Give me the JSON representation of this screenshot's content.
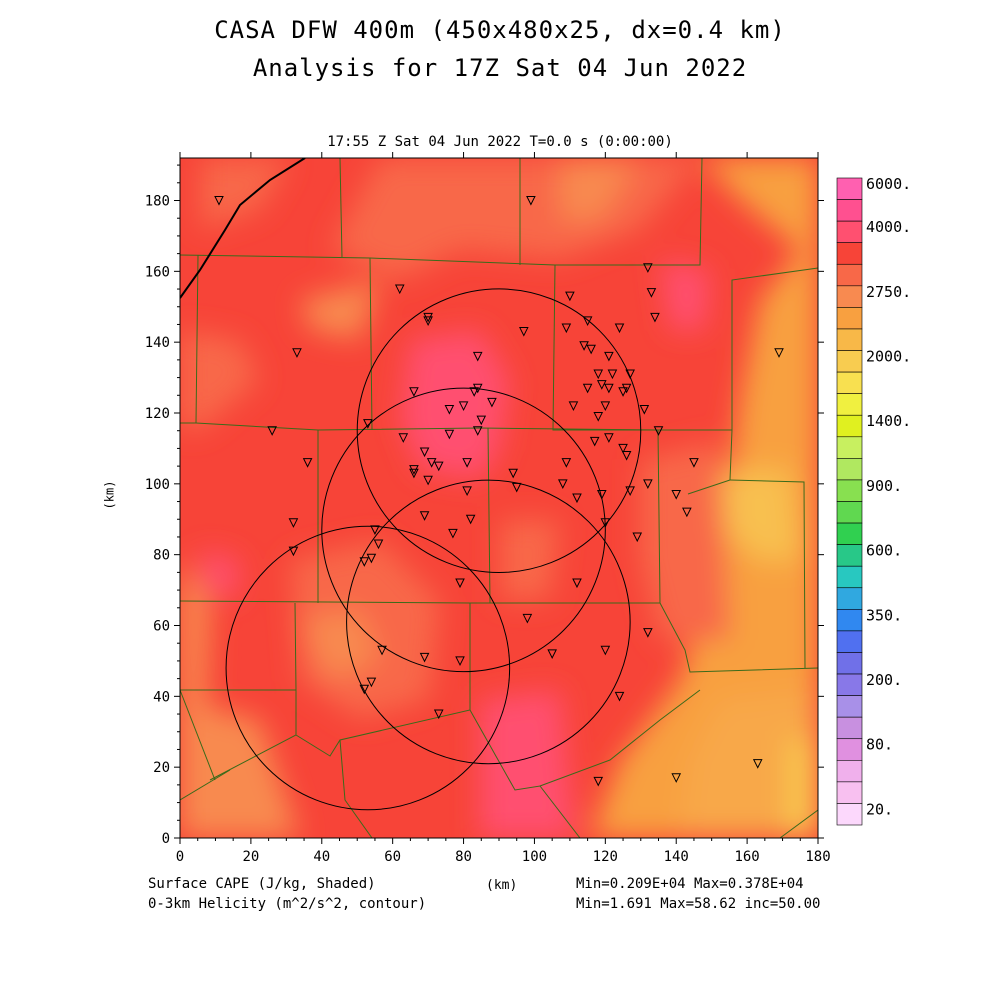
{
  "title_line1": "CASA DFW 400m (450x480x25, dx=0.4 km)",
  "title_line2": "Analysis for 17Z Sat 04 Jun 2022",
  "subtitle": "17:55 Z Sat 04 Jun 2022   T=0.0 s (0:00:00)",
  "footer": {
    "left_line1": "Surface CAPE (J/kg, Shaded)",
    "left_line2": "0-3km Helicity (m^2/s^2, contour)",
    "right_line1": "Min=0.209E+04 Max=0.378E+04",
    "right_line2": "Min=1.691 Max=58.62 inc=50.00"
  },
  "chart_data": {
    "type": "heatmap",
    "xlabel": "(km)",
    "ylabel": "(km)",
    "xlim": [
      0,
      180
    ],
    "ylim": [
      0,
      192
    ],
    "xticks": [
      0,
      20,
      40,
      60,
      80,
      100,
      120,
      140,
      160,
      180
    ],
    "yticks": [
      0,
      20,
      40,
      60,
      80,
      100,
      120,
      140,
      160,
      180
    ],
    "colorbar": {
      "levels": [
        {
          "label": "6000.",
          "color": "#ff60b0"
        },
        {
          "label": "",
          "color": "#ff5090"
        },
        {
          "label": "4000.",
          "color": "#ff5070"
        },
        {
          "label": "",
          "color": "#f74438"
        },
        {
          "label": "",
          "color": "#f86848"
        },
        {
          "label": "2750.",
          "color": "#f88a50"
        },
        {
          "label": "",
          "color": "#f8a040"
        },
        {
          "label": "",
          "color": "#f8b848"
        },
        {
          "label": "2000.",
          "color": "#f8cc50"
        },
        {
          "label": "",
          "color": "#f8e050"
        },
        {
          "label": "",
          "color": "#f0f040"
        },
        {
          "label": "1400.",
          "color": "#e0f020"
        },
        {
          "label": "",
          "color": "#c8f060"
        },
        {
          "label": "",
          "color": "#b0e860"
        },
        {
          "label": "900.",
          "color": "#88e050"
        },
        {
          "label": "",
          "color": "#60d850"
        },
        {
          "label": "",
          "color": "#30d050"
        },
        {
          "label": "600.",
          "color": "#28c888"
        },
        {
          "label": "",
          "color": "#28c8c0"
        },
        {
          "label": "",
          "color": "#30a8e0"
        },
        {
          "label": "350.",
          "color": "#3088f0"
        },
        {
          "label": "",
          "color": "#5070f0"
        },
        {
          "label": "",
          "color": "#7070e8"
        },
        {
          "label": "200.",
          "color": "#8878e8"
        },
        {
          "label": "",
          "color": "#a890e8"
        },
        {
          "label": "",
          "color": "#c890e0"
        },
        {
          "label": "80.",
          "color": "#e090e0"
        },
        {
          "label": "",
          "color": "#f0b0ec"
        },
        {
          "label": "",
          "color": "#f8c0f0"
        },
        {
          "label": "20.",
          "color": "#fcd8fc"
        }
      ]
    },
    "radar_rings_km": [
      {
        "cx": 90,
        "cy": 115,
        "r": 40
      },
      {
        "cx": 80,
        "cy": 87,
        "r": 40
      },
      {
        "cx": 87,
        "cy": 61,
        "r": 40
      },
      {
        "cx": 53,
        "cy": 48,
        "r": 40
      }
    ],
    "stations_km": [
      [
        11,
        180
      ],
      [
        99,
        180
      ],
      [
        62,
        155
      ],
      [
        110,
        153
      ],
      [
        70,
        147
      ],
      [
        70,
        146
      ],
      [
        97,
        143
      ],
      [
        109,
        144
      ],
      [
        115,
        146
      ],
      [
        124,
        144
      ],
      [
        132,
        161
      ],
      [
        133,
        154
      ],
      [
        134,
        147
      ],
      [
        33,
        137
      ],
      [
        84,
        136
      ],
      [
        114,
        139
      ],
      [
        116,
        138
      ],
      [
        121,
        136
      ],
      [
        118,
        131
      ],
      [
        122,
        131
      ],
      [
        127,
        131
      ],
      [
        115,
        127
      ],
      [
        119,
        128
      ],
      [
        121,
        127
      ],
      [
        125,
        126
      ],
      [
        126,
        127
      ],
      [
        66,
        126
      ],
      [
        84,
        127
      ],
      [
        83,
        126
      ],
      [
        76,
        121
      ],
      [
        80,
        122
      ],
      [
        88,
        123
      ],
      [
        111,
        122
      ],
      [
        120,
        122
      ],
      [
        118,
        119
      ],
      [
        131,
        121
      ],
      [
        85,
        118
      ],
      [
        84,
        115
      ],
      [
        53,
        117
      ],
      [
        26,
        115
      ],
      [
        135,
        115
      ],
      [
        63,
        113
      ],
      [
        76,
        114
      ],
      [
        117,
        112
      ],
      [
        121,
        113
      ],
      [
        125,
        110
      ],
      [
        126,
        108
      ],
      [
        69,
        109
      ],
      [
        71,
        106
      ],
      [
        73,
        105
      ],
      [
        66,
        104
      ],
      [
        66,
        103
      ],
      [
        70,
        101
      ],
      [
        81,
        106
      ],
      [
        109,
        106
      ],
      [
        94,
        103
      ],
      [
        108,
        100
      ],
      [
        132,
        100
      ],
      [
        36,
        106
      ],
      [
        145,
        106
      ],
      [
        95,
        99
      ],
      [
        81,
        98
      ],
      [
        119,
        97
      ],
      [
        127,
        98
      ],
      [
        140,
        97
      ],
      [
        112,
        96
      ],
      [
        143,
        92
      ],
      [
        69,
        91
      ],
      [
        32,
        89
      ],
      [
        82,
        90
      ],
      [
        120,
        89
      ],
      [
        129,
        85
      ],
      [
        77,
        86
      ],
      [
        55,
        87
      ],
      [
        56,
        83
      ],
      [
        32,
        81
      ],
      [
        54,
        79
      ],
      [
        52,
        78
      ],
      [
        112,
        72
      ],
      [
        79,
        72
      ],
      [
        98,
        62
      ],
      [
        132,
        58
      ],
      [
        57,
        53
      ],
      [
        69,
        51
      ],
      [
        79,
        50
      ],
      [
        105,
        52
      ],
      [
        120,
        53
      ],
      [
        54,
        44
      ],
      [
        52,
        42
      ],
      [
        124,
        40
      ],
      [
        73,
        35
      ],
      [
        118,
        16
      ],
      [
        140,
        17
      ],
      [
        163,
        21
      ],
      [
        169,
        137
      ]
    ]
  }
}
